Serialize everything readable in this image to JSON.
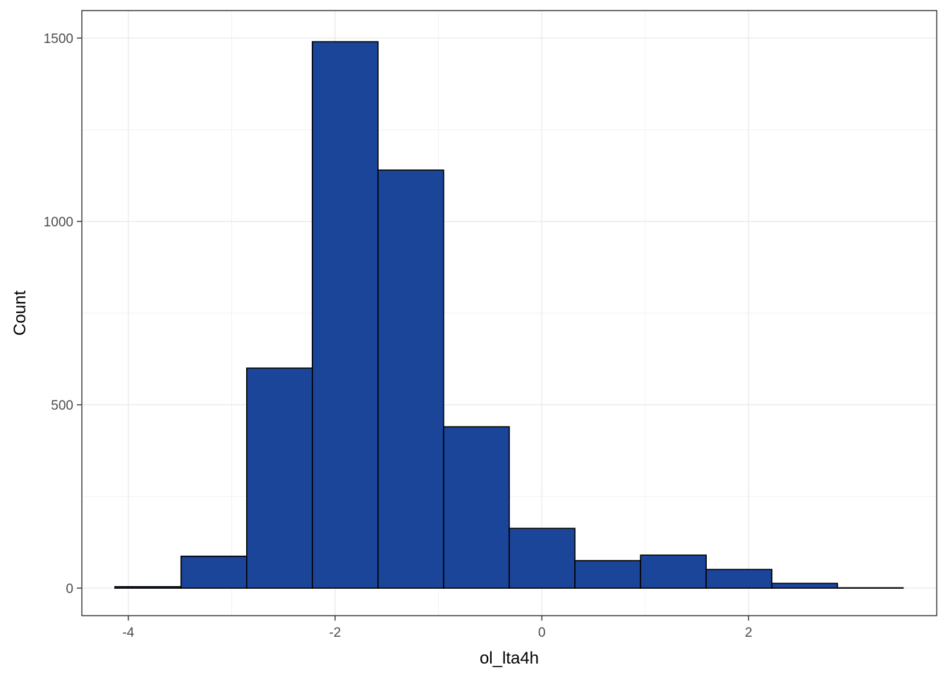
{
  "chart_data": {
    "type": "bar",
    "subtype": "histogram",
    "title": "",
    "xlabel": "ol_lta4h",
    "ylabel": "Count",
    "xlim": [
      -4.45,
      3.82
    ],
    "ylim": [
      -75,
      1575
    ],
    "x_ticks": [
      -4,
      -2,
      0,
      2
    ],
    "x_tick_labels": [
      "-4",
      "-2",
      "0",
      "2"
    ],
    "y_ticks": [
      0,
      500,
      1000,
      1500
    ],
    "y_tick_labels": [
      "0",
      "500",
      "1000",
      "1500"
    ],
    "grid": true,
    "legend": "none",
    "fill_color": "#1A4599",
    "outline_color": "#000000",
    "bins": [
      {
        "x0": -4.13,
        "x1": -3.49,
        "count": 4
      },
      {
        "x0": -3.49,
        "x1": -2.855,
        "count": 87
      },
      {
        "x0": -2.855,
        "x1": -2.22,
        "count": 600
      },
      {
        "x0": -2.22,
        "x1": -1.585,
        "count": 1490
      },
      {
        "x0": -1.585,
        "x1": -0.95,
        "count": 1140
      },
      {
        "x0": -0.95,
        "x1": -0.315,
        "count": 440
      },
      {
        "x0": -0.315,
        "x1": 0.32,
        "count": 163
      },
      {
        "x0": 0.32,
        "x1": 0.955,
        "count": 75
      },
      {
        "x0": 0.955,
        "x1": 1.59,
        "count": 90
      },
      {
        "x0": 1.59,
        "x1": 2.225,
        "count": 51
      },
      {
        "x0": 2.225,
        "x1": 2.86,
        "count": 13
      },
      {
        "x0": 2.86,
        "x1": 3.495,
        "count": 1
      }
    ]
  }
}
